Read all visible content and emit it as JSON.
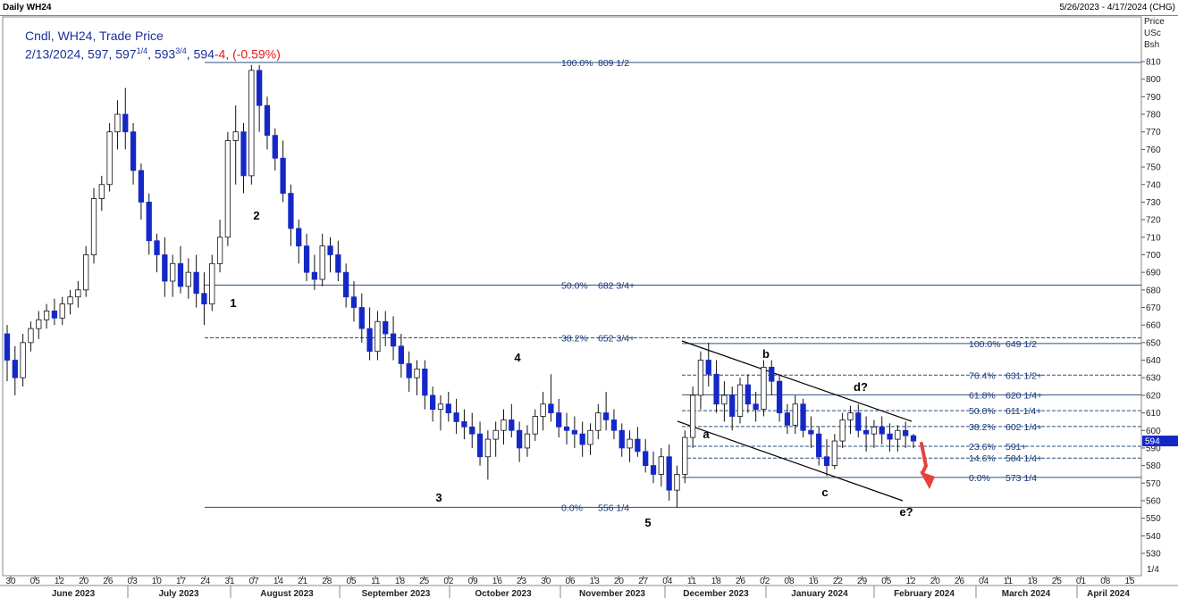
{
  "header": {
    "title": "Daily WH24",
    "date_range": "5/26/2023 - 4/17/2024 (CHG)"
  },
  "legend": {
    "line1": "Cndl, WH24, Trade Price",
    "date": "2/13/2024, 597, 597",
    "frac1": "1/4",
    "mid": ", 593",
    "frac2": "3/4",
    "close": ", 594",
    "change": "-4, (-0.59%)"
  },
  "axis": {
    "unit_lines": [
      "Price",
      "USc",
      "Bsh"
    ],
    "scale_label": "1/4",
    "last_price_tag": "594"
  },
  "colors": {
    "up": "#ffffff",
    "down": "#1428c8",
    "fib_line": "#2a4f7a",
    "arrow": "#e8413c",
    "last_price": "#1428c8"
  },
  "chart_data": {
    "type": "candlestick",
    "instrument": "WH24",
    "ylim": [
      520,
      820
    ],
    "y_ticks": [
      530,
      540,
      550,
      560,
      570,
      580,
      590,
      600,
      610,
      620,
      630,
      640,
      650,
      660,
      670,
      680,
      690,
      700,
      710,
      720,
      730,
      740,
      750,
      760,
      770,
      780,
      790,
      800,
      810
    ],
    "x_day_labels": [
      "30",
      "05",
      "12",
      "20",
      "26",
      "03",
      "10",
      "17",
      "24",
      "31",
      "07",
      "14",
      "21",
      "28",
      "05",
      "11",
      "18",
      "25",
      "02",
      "09",
      "16",
      "23",
      "30",
      "06",
      "13",
      "20",
      "27",
      "04",
      "11",
      "18",
      "26",
      "02",
      "08",
      "16",
      "22",
      "29",
      "05",
      "12",
      "20",
      "26",
      "04",
      "11",
      "18",
      "25",
      "01",
      "08",
      "15"
    ],
    "x_month_labels": [
      "June 2023",
      "July 2023",
      "August 2023",
      "September 2023",
      "October 2023",
      "November 2023",
      "December 2023",
      "January 2024",
      "February 2024",
      "March 2024",
      "April 2024"
    ],
    "fib_levels_primary": [
      {
        "label": "100.0%",
        "value_text": "809 1/2",
        "value": 809.5
      },
      {
        "label": "50.0%",
        "value_text": "682 3/4+",
        "value": 682.75
      },
      {
        "label": "38.2%",
        "value_text": "652 3/4+",
        "value": 652.75
      },
      {
        "label": "0.0%",
        "value_text": "556 1/4",
        "value": 556.25
      }
    ],
    "fib_levels_secondary": [
      {
        "label": "100.0%",
        "value_text": "649 1/2",
        "value": 649.5
      },
      {
        "label": "76.4%",
        "value_text": "631 1/2+",
        "value": 631.5
      },
      {
        "label": "61.8%",
        "value_text": "620 1/4+",
        "value": 620.25
      },
      {
        "label": "50.0%",
        "value_text": "611 1/4+",
        "value": 611.25
      },
      {
        "label": "38.2%",
        "value_text": "602 1/4+",
        "value": 602.25
      },
      {
        "label": "23.6%",
        "value_text": "591+",
        "value": 591
      },
      {
        "label": "14.6%",
        "value_text": "584 1/4+",
        "value": 584.25
      },
      {
        "label": "0.0%",
        "value_text": "573 1/4",
        "value": 573.25
      }
    ],
    "wave_labels": [
      "1",
      "2",
      "3",
      "4",
      "5",
      "a",
      "b",
      "c",
      "d?",
      "e?"
    ],
    "ohlc": [
      [
        655,
        660,
        628,
        640
      ],
      [
        640,
        648,
        620,
        630
      ],
      [
        630,
        655,
        625,
        650
      ],
      [
        650,
        662,
        645,
        658
      ],
      [
        658,
        668,
        652,
        663
      ],
      [
        663,
        672,
        658,
        668
      ],
      [
        668,
        675,
        660,
        664
      ],
      [
        664,
        676,
        660,
        672
      ],
      [
        672,
        680,
        666,
        676
      ],
      [
        676,
        685,
        670,
        680
      ],
      [
        680,
        705,
        676,
        700
      ],
      [
        700,
        738,
        695,
        732
      ],
      [
        732,
        745,
        725,
        740
      ],
      [
        740,
        775,
        736,
        770
      ],
      [
        770,
        788,
        760,
        780
      ],
      [
        780,
        795,
        760,
        770
      ],
      [
        770,
        775,
        740,
        748
      ],
      [
        748,
        752,
        720,
        730
      ],
      [
        730,
        735,
        700,
        708
      ],
      [
        708,
        712,
        690,
        700
      ],
      [
        700,
        710,
        676,
        685
      ],
      [
        685,
        700,
        676,
        695
      ],
      [
        695,
        705,
        678,
        682
      ],
      [
        682,
        698,
        675,
        690
      ],
      [
        690,
        700,
        670,
        678
      ],
      [
        678,
        690,
        660,
        672
      ],
      [
        672,
        700,
        668,
        695
      ],
      [
        695,
        720,
        690,
        710
      ],
      [
        710,
        770,
        705,
        765
      ],
      [
        765,
        785,
        740,
        770
      ],
      [
        770,
        775,
        735,
        745
      ],
      [
        745,
        808,
        740,
        805
      ],
      [
        805,
        808,
        770,
        785
      ],
      [
        785,
        790,
        760,
        768
      ],
      [
        768,
        772,
        748,
        755
      ],
      [
        755,
        765,
        730,
        735
      ],
      [
        735,
        740,
        705,
        715
      ],
      [
        715,
        720,
        695,
        705
      ],
      [
        705,
        712,
        685,
        690
      ],
      [
        690,
        700,
        680,
        686
      ],
      [
        686,
        712,
        682,
        705
      ],
      [
        705,
        710,
        690,
        700
      ],
      [
        700,
        708,
        685,
        690
      ],
      [
        690,
        695,
        670,
        676
      ],
      [
        676,
        685,
        662,
        670
      ],
      [
        670,
        678,
        650,
        658
      ],
      [
        658,
        670,
        640,
        645
      ],
      [
        645,
        668,
        640,
        662
      ],
      [
        662,
        668,
        648,
        655
      ],
      [
        655,
        665,
        640,
        648
      ],
      [
        648,
        655,
        630,
        638
      ],
      [
        638,
        645,
        622,
        630
      ],
      [
        630,
        640,
        620,
        635
      ],
      [
        635,
        640,
        612,
        620
      ],
      [
        620,
        625,
        605,
        612
      ],
      [
        612,
        620,
        600,
        615
      ],
      [
        615,
        622,
        605,
        610
      ],
      [
        610,
        618,
        598,
        605
      ],
      [
        605,
        612,
        595,
        602
      ],
      [
        602,
        610,
        590,
        598
      ],
      [
        598,
        605,
        580,
        585
      ],
      [
        585,
        600,
        572,
        595
      ],
      [
        595,
        605,
        585,
        600
      ],
      [
        600,
        612,
        592,
        606
      ],
      [
        606,
        615,
        596,
        600
      ],
      [
        600,
        605,
        582,
        590
      ],
      [
        590,
        603,
        585,
        598
      ],
      [
        598,
        612,
        594,
        608
      ],
      [
        608,
        622,
        600,
        615
      ],
      [
        615,
        632,
        605,
        610
      ],
      [
        610,
        618,
        596,
        602
      ],
      [
        602,
        610,
        592,
        600
      ],
      [
        600,
        608,
        590,
        598
      ],
      [
        598,
        605,
        585,
        592
      ],
      [
        592,
        604,
        586,
        600
      ],
      [
        600,
        615,
        595,
        610
      ],
      [
        610,
        622,
        600,
        606
      ],
      [
        606,
        612,
        595,
        600
      ],
      [
        600,
        604,
        585,
        590
      ],
      [
        590,
        600,
        582,
        595
      ],
      [
        595,
        602,
        585,
        588
      ],
      [
        588,
        595,
        576,
        580
      ],
      [
        580,
        588,
        570,
        575
      ],
      [
        575,
        590,
        568,
        585
      ],
      [
        585,
        592,
        560,
        566
      ],
      [
        566,
        580,
        556,
        575
      ],
      [
        575,
        600,
        570,
        596
      ],
      [
        596,
        625,
        590,
        620
      ],
      [
        620,
        645,
        612,
        640
      ],
      [
        640,
        650,
        625,
        632
      ],
      [
        632,
        640,
        610,
        615
      ],
      [
        615,
        628,
        605,
        620
      ],
      [
        620,
        625,
        600,
        608
      ],
      [
        608,
        630,
        604,
        626
      ],
      [
        626,
        632,
        610,
        615
      ],
      [
        615,
        622,
        605,
        612
      ],
      [
        612,
        640,
        608,
        636
      ],
      [
        636,
        640,
        620,
        628
      ],
      [
        628,
        632,
        605,
        610
      ],
      [
        610,
        615,
        598,
        603
      ],
      [
        603,
        620,
        598,
        615
      ],
      [
        615,
        618,
        596,
        600
      ],
      [
        600,
        608,
        590,
        598
      ],
      [
        598,
        602,
        580,
        585
      ],
      [
        585,
        595,
        574,
        580
      ],
      [
        580,
        598,
        578,
        594
      ],
      [
        594,
        610,
        590,
        606
      ],
      [
        606,
        614,
        598,
        610
      ],
      [
        610,
        615,
        596,
        600
      ],
      [
        600,
        608,
        588,
        598
      ],
      [
        598,
        606,
        590,
        602
      ],
      [
        602,
        608,
        592,
        598
      ],
      [
        598,
        604,
        588,
        595
      ],
      [
        595,
        603,
        588,
        600
      ],
      [
        600,
        605,
        590,
        597
      ],
      [
        597,
        598,
        590,
        594
      ]
    ]
  }
}
